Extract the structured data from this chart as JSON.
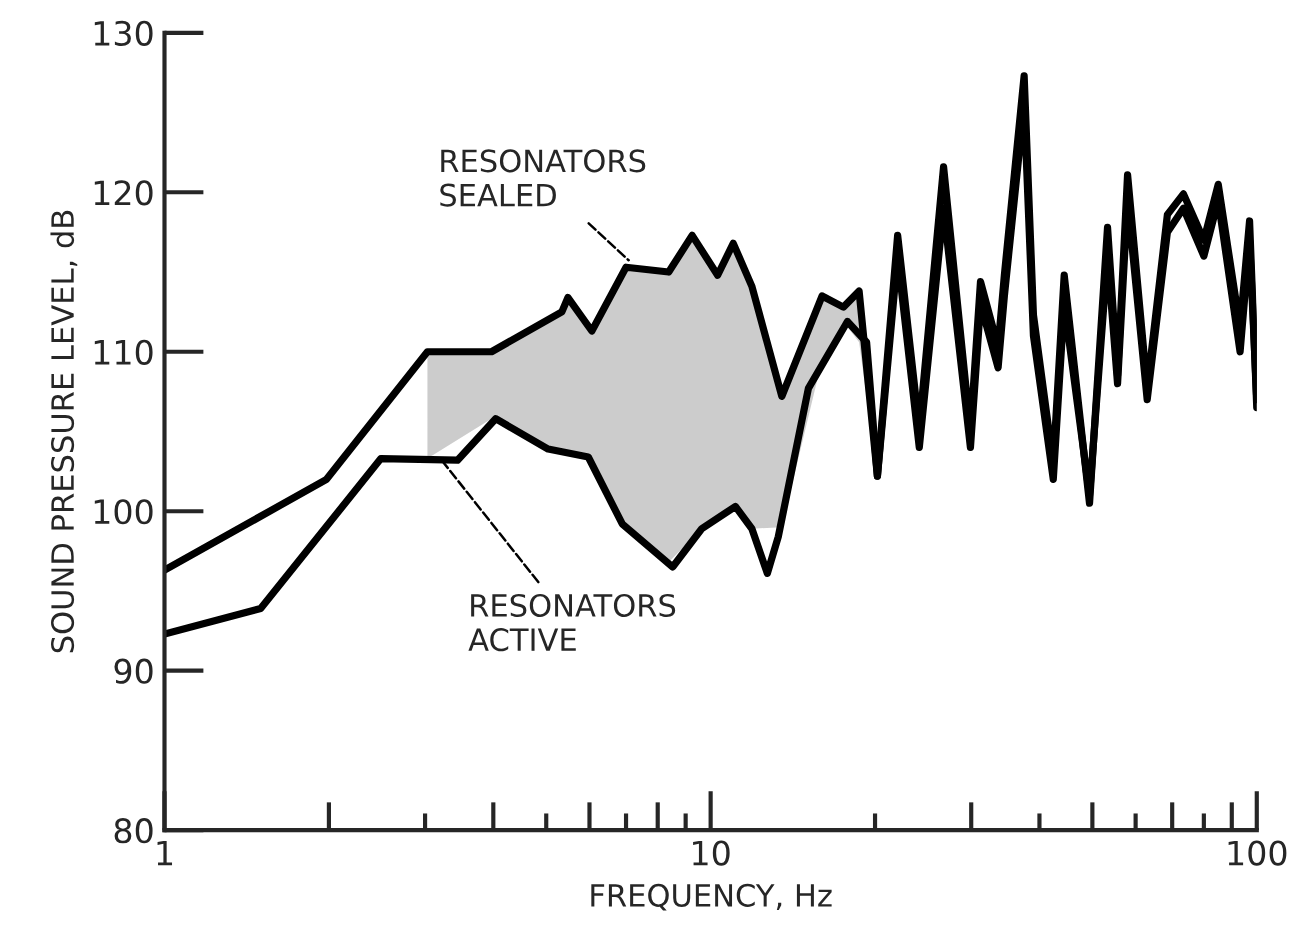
{
  "chart_data": {
    "type": "line",
    "xlabel": "FREQUENCY, Hz",
    "ylabel": "SOUND PRESSURE LEVEL, dB",
    "log": "x",
    "xlim": [
      1,
      100
    ],
    "ylim": [
      80,
      130
    ],
    "xticks": [
      1,
      {
        "value": 2,
        "label": null
      },
      {
        "value": 3,
        "label": null
      },
      {
        "value": 4,
        "label": null
      },
      {
        "value": 5,
        "label": null
      },
      {
        "value": 6,
        "label": null
      },
      {
        "value": 7,
        "label": null
      },
      {
        "value": 8,
        "label": null
      },
      {
        "value": 9,
        "label": null
      },
      10,
      {
        "value": 20,
        "label": null
      },
      {
        "value": 30,
        "label": null
      },
      {
        "value": 40,
        "label": null
      },
      {
        "value": 50,
        "label": null
      },
      {
        "value": 60,
        "label": null
      },
      {
        "value": 70,
        "label": null
      },
      {
        "value": 80,
        "label": null
      },
      {
        "value": 90,
        "label": null
      },
      100
    ],
    "yticks": [
      80,
      90,
      100,
      110,
      120,
      130
    ],
    "grid": false,
    "legend": false,
    "marker": "none",
    "line_style": "solid",
    "series": [
      {
        "color": "#000000",
        "x": [
          1,
          1.98,
          3.03,
          3.97,
          5.34,
          5.48,
          6.06,
          7.0,
          8.38,
          9.25,
          10.3,
          11.0,
          11.9,
          13.5,
          16.0,
          17.5,
          18.7,
          20.2,
          22.0,
          24.1,
          26.7,
          29.9,
          31.2,
          33.6,
          34.5,
          37.5,
          39.0,
          42.4,
          44.4,
          49.4,
          53.3,
          55.6,
          58.0,
          63.0,
          68.6,
          73.4,
          80.0,
          85.0,
          93.2,
          97,
          100
        ],
        "values": [
          96.3,
          102,
          110,
          110,
          112.5,
          113.4,
          111.3,
          115.3,
          115,
          117.3,
          114.8,
          116.8,
          114.1,
          107.2,
          113.5,
          112.8,
          113.8,
          102.2,
          117.3,
          105.2,
          121.6,
          105,
          114.4,
          110.3,
          114.8,
          127.3,
          112.3,
          103,
          114.8,
          100.5,
          117.8,
          108.5,
          121.1,
          107.7,
          118.6,
          119.9,
          117,
          120.5,
          111.5,
          118.2,
          106.5
        ],
        "lower": [
          null,
          null,
          103.3,
          105.8,
          103.7,
          103.5,
          103.3,
          99.2,
          96.8,
          98.3,
          99.6,
          100.3,
          98.9,
          99.0,
          109.5,
          111.9,
          110.6,
          102.2,
          null,
          null,
          null,
          null,
          null,
          null,
          null,
          null,
          null,
          null,
          null,
          null,
          null,
          null,
          null,
          null,
          null,
          null,
          null,
          null,
          null,
          null,
          null
        ],
        "upper": [
          null,
          null,
          110,
          110,
          112.5,
          113.4,
          111.3,
          115.3,
          115,
          117.3,
          114.8,
          116.8,
          114.1,
          107.2,
          113.5,
          112.8,
          113.8,
          102.2,
          null,
          null,
          null,
          null,
          null,
          null,
          null,
          null,
          null,
          null,
          null,
          null,
          null,
          null,
          null,
          null,
          null,
          null,
          null,
          null,
          null,
          null,
          null
        ]
      },
      {
        "color": "#000000",
        "x": [
          1,
          1.5,
          2.49,
          3.44,
          4.04,
          5.04,
          5.97,
          6.89,
          8.52,
          9.63,
          11.1,
          11.9,
          12.7,
          13.3,
          15.1,
          17.8,
          19.3,
          20.2,
          22.0,
          24.1,
          26.7,
          29.9,
          31.2,
          33.6,
          34.5,
          37.5,
          39.0,
          42.4,
          44.4,
          49.4,
          53.3,
          55.6,
          58.0,
          63.0,
          68.6,
          73.4,
          80.0,
          85.0,
          93.2,
          97,
          100
        ],
        "values": [
          92.3,
          93.9,
          103.3,
          103.2,
          105.8,
          103.9,
          103.4,
          99.2,
          96.5,
          98.9,
          100.3,
          98.9,
          96.1,
          98.4,
          107.7,
          111.9,
          110.6,
          102.2,
          116,
          104,
          119,
          104,
          113,
          109,
          113.5,
          125.5,
          111,
          102,
          113,
          101,
          116,
          108,
          119.5,
          107,
          117.5,
          119,
          116,
          119.5,
          110,
          117,
          107
        ]
      }
    ],
    "annotations": [
      {
        "text": "RESONATORS\nSEALED",
        "x": 7.2,
        "y": 115.5
      },
      {
        "text": "RESONATORS\nACTIVE",
        "x": 3.2,
        "y": 103.3
      }
    ]
  }
}
